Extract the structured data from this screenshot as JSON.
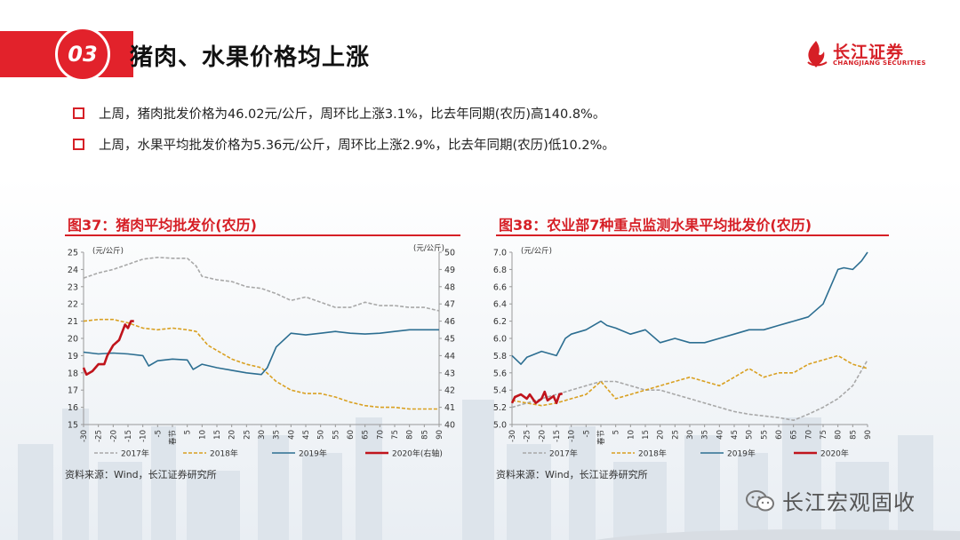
{
  "header": {
    "number": "03",
    "title": "猪肉、水果价格均上涨"
  },
  "logo": {
    "cn": "长江证券",
    "en": "CHANGJIANG SECURITIES"
  },
  "bullets": [
    "上周，猪肉批发价格为46.02元/公斤，周环比上涨3.1%，比去年同期(农历)高140.8%。",
    "上周，水果平均批发价格为5.36元/公斤，周环比上涨2.9%，比去年同期(农历)低10.2%。"
  ],
  "colors": {
    "accent": "#d61f26",
    "s2017": "#a8a8a8",
    "s2018": "#d9a021",
    "s2019": "#2c6e91",
    "s2020": "#c0141c"
  },
  "charts": [
    {
      "title": "图37：猪肉平均批发价(农历)",
      "source": "资料来源：Wind，长江证券研究所",
      "chart_data": {
        "type": "line",
        "y_left_label": "(元/公斤)",
        "y_right_label": "(元/公斤)",
        "ylim": [
          15,
          25
        ],
        "ylim_right": [
          40,
          50
        ],
        "y_ticks": [
          "15",
          "16",
          "17",
          "18",
          "19",
          "20",
          "21",
          "22",
          "23",
          "24",
          "25"
        ],
        "y_right_ticks": [
          "40",
          "41",
          "42",
          "43",
          "44",
          "45",
          "46",
          "47",
          "48",
          "49",
          "50"
        ],
        "xlim": [
          -30,
          90
        ],
        "x_ticks": [
          "-30",
          "-25",
          "-20",
          "-15",
          "-10",
          "-5",
          "春节",
          "5",
          "10",
          "15",
          "20",
          "25",
          "30",
          "35",
          "40",
          "45",
          "50",
          "55",
          "60",
          "65",
          "70",
          "75",
          "80",
          "85",
          "90"
        ],
        "series": [
          {
            "name": "2017年",
            "axis": "left",
            "style": "dashed",
            "x": [
              -30,
              -25,
              -20,
              -15,
              -10,
              -5,
              0,
              5,
              8,
              10,
              15,
              20,
              25,
              30,
              35,
              40,
              45,
              50,
              55,
              60,
              65,
              70,
              75,
              80,
              85,
              90
            ],
            "y": [
              23.5,
              23.8,
              24.0,
              24.3,
              24.6,
              24.7,
              24.65,
              24.65,
              24.2,
              23.6,
              23.4,
              23.3,
              23.0,
              22.9,
              22.6,
              22.2,
              22.4,
              22.1,
              21.8,
              21.8,
              22.1,
              21.9,
              21.9,
              21.8,
              21.8,
              21.6
            ]
          },
          {
            "name": "2018年",
            "axis": "left",
            "style": "dashed",
            "x": [
              -30,
              -25,
              -20,
              -15,
              -10,
              -5,
              0,
              5,
              8,
              10,
              12,
              15,
              20,
              25,
              30,
              35,
              40,
              45,
              50,
              55,
              60,
              65,
              70,
              75,
              80,
              85,
              90
            ],
            "y": [
              21.0,
              21.1,
              21.1,
              20.9,
              20.6,
              20.5,
              20.6,
              20.5,
              20.4,
              20.0,
              19.6,
              19.3,
              18.8,
              18.5,
              18.3,
              17.5,
              17.0,
              16.8,
              16.8,
              16.6,
              16.3,
              16.1,
              16.0,
              16.0,
              15.9,
              15.9,
              15.9
            ]
          },
          {
            "name": "2019年",
            "axis": "left",
            "style": "solid",
            "x": [
              -30,
              -25,
              -20,
              -15,
              -10,
              -8,
              -5,
              0,
              5,
              7,
              10,
              15,
              20,
              25,
              30,
              32,
              35,
              40,
              45,
              50,
              55,
              60,
              65,
              70,
              75,
              80,
              85,
              90
            ],
            "y": [
              19.2,
              19.1,
              19.15,
              19.1,
              19.0,
              18.4,
              18.7,
              18.8,
              18.75,
              18.2,
              18.5,
              18.3,
              18.15,
              18.0,
              17.9,
              18.3,
              19.5,
              20.3,
              20.2,
              20.3,
              20.4,
              20.3,
              20.25,
              20.3,
              20.4,
              20.5,
              20.5,
              20.5
            ]
          },
          {
            "name": "2020年(右轴)",
            "axis": "right",
            "style": "solid",
            "x": [
              -30,
              -29,
              -27,
              -25,
              -23,
              -22,
              -20,
              -18,
              -16,
              -15,
              -14,
              -13
            ],
            "y": [
              43.3,
              42.9,
              43.1,
              43.5,
              43.5,
              44.0,
              44.6,
              44.9,
              45.8,
              45.6,
              46.0,
              46.0
            ]
          }
        ]
      }
    },
    {
      "title": "图38：农业部7种重点监测水果平均批发价(农历)",
      "source": "资料来源：Wind，长江证券研究所",
      "chart_data": {
        "type": "line",
        "y_left_label": "(元/公斤)",
        "ylim": [
          5.0,
          7.0
        ],
        "y_ticks": [
          "5.0",
          "5.2",
          "5.4",
          "5.6",
          "5.8",
          "6.0",
          "6.2",
          "6.4",
          "6.6",
          "6.8",
          "7.0"
        ],
        "xlim": [
          -30,
          90
        ],
        "x_ticks": [
          "-30",
          "-25",
          "-20",
          "-15",
          "-10",
          "-5",
          "春节",
          "5",
          "10",
          "15",
          "20",
          "25",
          "30",
          "35",
          "40",
          "45",
          "50",
          "55",
          "60",
          "65",
          "70",
          "75",
          "80",
          "85",
          "90"
        ],
        "series": [
          {
            "name": "2017年",
            "style": "dashed",
            "x": [
              -30,
              -25,
              -20,
              -15,
              -10,
              -5,
              0,
              5,
              10,
              15,
              20,
              25,
              30,
              35,
              40,
              45,
              50,
              55,
              60,
              65,
              70,
              75,
              80,
              85,
              90
            ],
            "y": [
              5.2,
              5.25,
              5.3,
              5.35,
              5.4,
              5.45,
              5.5,
              5.5,
              5.45,
              5.4,
              5.4,
              5.35,
              5.3,
              5.25,
              5.2,
              5.15,
              5.12,
              5.1,
              5.08,
              5.05,
              5.12,
              5.2,
              5.3,
              5.45,
              5.75
            ]
          },
          {
            "name": "2018年",
            "style": "dashed",
            "x": [
              -30,
              -25,
              -20,
              -15,
              -10,
              -5,
              0,
              5,
              10,
              15,
              20,
              25,
              30,
              35,
              40,
              45,
              50,
              55,
              60,
              65,
              70,
              75,
              80,
              85,
              90
            ],
            "y": [
              5.28,
              5.25,
              5.22,
              5.25,
              5.3,
              5.35,
              5.5,
              5.3,
              5.35,
              5.4,
              5.45,
              5.5,
              5.55,
              5.5,
              5.45,
              5.55,
              5.65,
              5.55,
              5.6,
              5.6,
              5.7,
              5.75,
              5.8,
              5.7,
              5.65
            ]
          },
          {
            "name": "2019年",
            "style": "solid",
            "x": [
              -30,
              -27,
              -25,
              -20,
              -15,
              -12,
              -10,
              -5,
              0,
              2,
              5,
              10,
              15,
              20,
              25,
              30,
              35,
              40,
              45,
              50,
              55,
              60,
              65,
              70,
              75,
              80,
              82,
              85,
              88,
              90
            ],
            "y": [
              5.8,
              5.7,
              5.78,
              5.85,
              5.8,
              6.0,
              6.05,
              6.1,
              6.2,
              6.15,
              6.12,
              6.05,
              6.1,
              5.95,
              6.0,
              5.95,
              5.95,
              6.0,
              6.05,
              6.1,
              6.1,
              6.15,
              6.2,
              6.25,
              6.4,
              6.8,
              6.82,
              6.8,
              6.9,
              7.0
            ]
          },
          {
            "name": "2020年",
            "style": "solid",
            "x": [
              -30,
              -29,
              -27,
              -25,
              -24,
              -22,
              -20,
              -19,
              -18,
              -16,
              -15,
              -14,
              -13
            ],
            "y": [
              5.25,
              5.32,
              5.35,
              5.3,
              5.35,
              5.25,
              5.3,
              5.38,
              5.28,
              5.33,
              5.25,
              5.35,
              5.36
            ]
          }
        ]
      }
    }
  ],
  "watermark": "长江宏观固收"
}
